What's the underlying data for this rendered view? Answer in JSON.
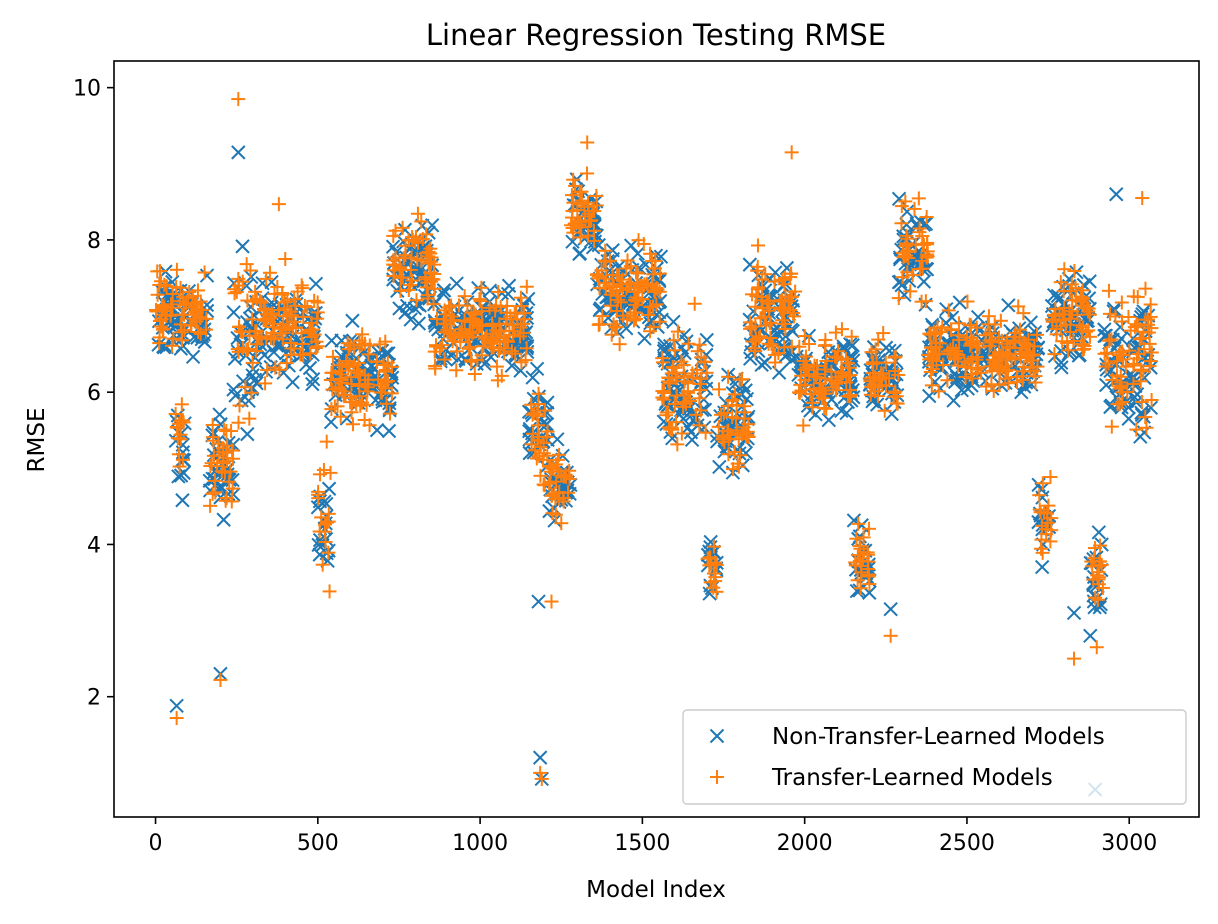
{
  "chart_data": {
    "type": "scatter",
    "title": "Linear Regression Testing RMSE",
    "xlabel": "Model Index",
    "ylabel": "RMSE",
    "xlim": [
      -128,
      3215
    ],
    "ylim": [
      0.42,
      10.35
    ],
    "xticks": [
      0,
      500,
      1000,
      1500,
      2000,
      2500,
      3000
    ],
    "yticks": [
      2,
      4,
      6,
      8,
      10
    ],
    "grid": false,
    "legend_position": "lower-right",
    "colors": {
      "non_transfer": "#1f77b4",
      "transfer": "#ff7f0e"
    },
    "series": [
      {
        "name": "Non-Transfer-Learned Models",
        "marker": "x",
        "segments": [
          {
            "x": [
              0,
              95
            ],
            "center": 7.0,
            "spread": 0.55
          },
          {
            "x": [
              60,
              90
            ],
            "center": 5.2,
            "spread": 0.6
          },
          {
            "x": [
              100,
              160
            ],
            "center": 7.0,
            "spread": 0.5
          },
          {
            "x": [
              165,
              240
            ],
            "center": 5.0,
            "spread": 0.7
          },
          {
            "x": [
              240,
              300
            ],
            "center": 6.5,
            "spread": 1.3
          },
          {
            "x": [
              300,
              500
            ],
            "center": 6.8,
            "spread": 0.65
          },
          {
            "x": [
              500,
              540
            ],
            "center": 4.3,
            "spread": 0.8
          },
          {
            "x": [
              540,
              730
            ],
            "center": 6.2,
            "spread": 0.6
          },
          {
            "x": [
              730,
              860
            ],
            "center": 7.6,
            "spread": 0.7
          },
          {
            "x": [
              860,
              1150
            ],
            "center": 6.8,
            "spread": 0.55
          },
          {
            "x": [
              1150,
              1210
            ],
            "center": 5.5,
            "spread": 0.7
          },
          {
            "x": [
              1210,
              1280
            ],
            "center": 4.8,
            "spread": 0.5
          },
          {
            "x": [
              1280,
              1360
            ],
            "center": 8.3,
            "spread": 0.55
          },
          {
            "x": [
              1360,
              1560
            ],
            "center": 7.3,
            "spread": 0.55
          },
          {
            "x": [
              1560,
              1700
            ],
            "center": 6.1,
            "spread": 0.8
          },
          {
            "x": [
              1700,
              1730
            ],
            "center": 3.7,
            "spread": 0.4
          },
          {
            "x": [
              1730,
              1830
            ],
            "center": 5.6,
            "spread": 0.6
          },
          {
            "x": [
              1830,
              1980
            ],
            "center": 7.0,
            "spread": 0.8
          },
          {
            "x": [
              1980,
              2150
            ],
            "center": 6.2,
            "spread": 0.6
          },
          {
            "x": [
              2150,
              2200
            ],
            "center": 3.8,
            "spread": 0.7
          },
          {
            "x": [
              2200,
              2290
            ],
            "center": 6.2,
            "spread": 0.5
          },
          {
            "x": [
              2290,
              2380
            ],
            "center": 7.8,
            "spread": 0.7
          },
          {
            "x": [
              2380,
              2720
            ],
            "center": 6.5,
            "spread": 0.5
          },
          {
            "x": [
              2720,
              2760
            ],
            "center": 4.4,
            "spread": 0.6
          },
          {
            "x": [
              2760,
              2880
            ],
            "center": 7.0,
            "spread": 0.6
          },
          {
            "x": [
              2880,
              2920
            ],
            "center": 3.6,
            "spread": 0.5
          },
          {
            "x": [
              2920,
              3070
            ],
            "center": 6.4,
            "spread": 0.9
          }
        ],
        "points": [
          {
            "x": 65,
            "y": 1.88
          },
          {
            "x": 200,
            "y": 2.3
          },
          {
            "x": 1185,
            "y": 1.2
          },
          {
            "x": 1190,
            "y": 0.92
          },
          {
            "x": 255,
            "y": 9.15
          },
          {
            "x": 2880,
            "y": 2.8
          },
          {
            "x": 2265,
            "y": 3.15
          },
          {
            "x": 2830,
            "y": 3.1
          },
          {
            "x": 1180,
            "y": 3.25
          },
          {
            "x": 2960,
            "y": 8.6
          },
          {
            "x": 2895,
            "y": 0.78
          }
        ]
      },
      {
        "name": "Transfer-Learned Models",
        "marker": "+",
        "segments": [
          {
            "x": [
              0,
              95
            ],
            "center": 7.1,
            "spread": 0.55
          },
          {
            "x": [
              60,
              90
            ],
            "center": 5.4,
            "spread": 0.7
          },
          {
            "x": [
              100,
              160
            ],
            "center": 7.0,
            "spread": 0.5
          },
          {
            "x": [
              165,
              240
            ],
            "center": 5.0,
            "spread": 0.7
          },
          {
            "x": [
              240,
              300
            ],
            "center": 6.6,
            "spread": 1.2
          },
          {
            "x": [
              300,
              500
            ],
            "center": 6.9,
            "spread": 0.65
          },
          {
            "x": [
              500,
              540
            ],
            "center": 4.3,
            "spread": 0.8
          },
          {
            "x": [
              540,
              730
            ],
            "center": 6.2,
            "spread": 0.6
          },
          {
            "x": [
              730,
              860
            ],
            "center": 7.7,
            "spread": 0.7
          },
          {
            "x": [
              860,
              1150
            ],
            "center": 6.8,
            "spread": 0.55
          },
          {
            "x": [
              1150,
              1210
            ],
            "center": 5.4,
            "spread": 0.7
          },
          {
            "x": [
              1210,
              1280
            ],
            "center": 4.8,
            "spread": 0.5
          },
          {
            "x": [
              1280,
              1360
            ],
            "center": 8.4,
            "spread": 0.55
          },
          {
            "x": [
              1360,
              1560
            ],
            "center": 7.3,
            "spread": 0.55
          },
          {
            "x": [
              1560,
              1700
            ],
            "center": 6.1,
            "spread": 0.8
          },
          {
            "x": [
              1700,
              1730
            ],
            "center": 3.7,
            "spread": 0.4
          },
          {
            "x": [
              1730,
              1830
            ],
            "center": 5.6,
            "spread": 0.6
          },
          {
            "x": [
              1830,
              1980
            ],
            "center": 7.1,
            "spread": 0.8
          },
          {
            "x": [
              1980,
              2150
            ],
            "center": 6.2,
            "spread": 0.6
          },
          {
            "x": [
              2150,
              2200
            ],
            "center": 3.8,
            "spread": 0.7
          },
          {
            "x": [
              2200,
              2290
            ],
            "center": 6.2,
            "spread": 0.5
          },
          {
            "x": [
              2290,
              2380
            ],
            "center": 7.9,
            "spread": 0.7
          },
          {
            "x": [
              2380,
              2720
            ],
            "center": 6.5,
            "spread": 0.5
          },
          {
            "x": [
              2720,
              2760
            ],
            "center": 4.4,
            "spread": 0.6
          },
          {
            "x": [
              2760,
              2880
            ],
            "center": 7.0,
            "spread": 0.6
          },
          {
            "x": [
              2880,
              2920
            ],
            "center": 3.7,
            "spread": 0.5
          },
          {
            "x": [
              2920,
              3070
            ],
            "center": 6.5,
            "spread": 0.9
          }
        ],
        "points": [
          {
            "x": 65,
            "y": 1.72
          },
          {
            "x": 200,
            "y": 2.22
          },
          {
            "x": 1185,
            "y": 1.0
          },
          {
            "x": 1190,
            "y": 0.92
          },
          {
            "x": 255,
            "y": 9.85
          },
          {
            "x": 2900,
            "y": 2.65
          },
          {
            "x": 2265,
            "y": 2.8
          },
          {
            "x": 2830,
            "y": 2.5
          },
          {
            "x": 1220,
            "y": 3.25
          },
          {
            "x": 380,
            "y": 8.47
          },
          {
            "x": 1330,
            "y": 9.28
          },
          {
            "x": 1960,
            "y": 9.15
          },
          {
            "x": 3040,
            "y": 8.55
          }
        ]
      }
    ]
  }
}
